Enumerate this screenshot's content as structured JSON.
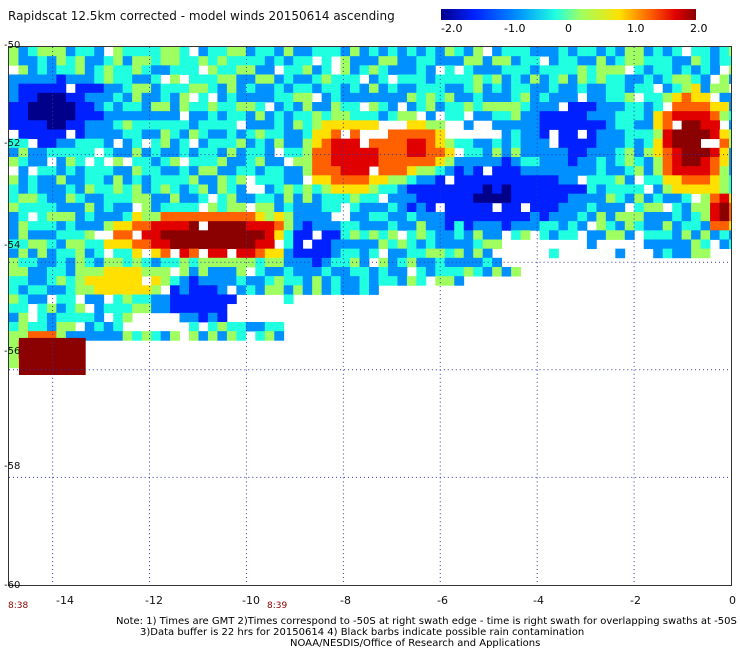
{
  "title": "Rapidscat 12.5km corrected - model winds 20150614 ascending",
  "colorbar": {
    "ticks": [
      "-2.0",
      "-1.0",
      "0",
      "1.0",
      "2.0"
    ],
    "range": [
      -2.0,
      2.0
    ],
    "colors": [
      "#00008b",
      "#0020ff",
      "#0090ff",
      "#20ffe0",
      "#a0ff60",
      "#ffe000",
      "#ff6000",
      "#e00000",
      "#8b0000"
    ]
  },
  "map": {
    "x_ticks": [
      "-14",
      "-12",
      "-10",
      "-8",
      "-6",
      "-4",
      "-2",
      "0"
    ],
    "y_ticks": [
      "-50",
      "-52",
      "-54",
      "-56",
      "-58",
      "-60"
    ],
    "time_labels": [
      "8:38",
      "8:39"
    ],
    "lon_range": [
      -14.9,
      0
    ],
    "lat_range": [
      -60,
      -50
    ],
    "gridlines": "dotted",
    "grid_color": "#3333aa"
  },
  "notes": [
    "Note: 1) Times are GMT 2)Times correspond to -50S at right swath edge - time is right swath for overlapping swaths at -50S",
    "3)Data buffer is 22 hrs for 20150614 4) Black barbs indicate possible rain contamination",
    "NOAA/NESDIS/Office of Research and Applications"
  ]
}
